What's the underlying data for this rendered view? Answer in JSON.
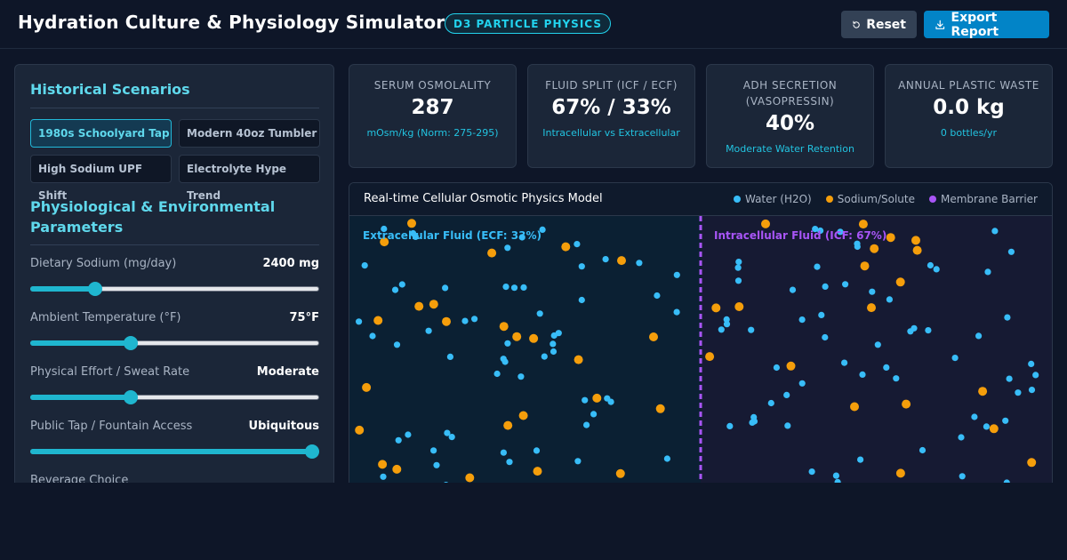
{
  "header": {
    "title": "Hydration Culture & Physiology Simulator",
    "badge": "D3 PARTICLE PHYSICS",
    "reset_label": "Reset",
    "export_label": "Export Report"
  },
  "sidebar": {
    "scenarios_title": "Historical Scenarios",
    "scenarios": [
      {
        "label": "1980s Schoolyard Tap",
        "active": true
      },
      {
        "label": "Modern 40oz Tumbler",
        "active": false
      },
      {
        "label": "High Sodium UPF Shift",
        "active": false
      },
      {
        "label": "Electrolyte Hype Trend",
        "active": false
      }
    ],
    "params_title": "Physiological & Environmental Parameters",
    "params": [
      {
        "label": "Dietary Sodium (mg/day)",
        "value": "2400 mg",
        "level": 0.21
      },
      {
        "label": "Ambient Temperature (°F)",
        "value": "75°F",
        "level": 0.34
      },
      {
        "label": "Physical Effort / Sweat Rate",
        "value": "Moderate",
        "level": 0.34
      },
      {
        "label": "Public Tap / Fountain Access",
        "value": "Ubiquitous",
        "level": 1.0
      }
    ],
    "next_label": "Beverage Choice"
  },
  "metrics": [
    {
      "title": "SERUM OSMOLALITY",
      "value": "287",
      "sub": "mOsm/kg (Norm: 275-295)"
    },
    {
      "title": "FLUID SPLIT (ICF / ECF)",
      "value": "67% / 33%",
      "sub": "Intracellular vs Extracellular"
    },
    {
      "title": "ADH SECRETION (VASOPRESSIN)",
      "value": "40%",
      "sub": "Moderate Water Retention"
    },
    {
      "title": "ANNUAL PLASTIC WASTE",
      "value": "0.0 kg",
      "sub": "0 bottles/yr"
    }
  ],
  "model": {
    "title": "Real-time Cellular Osmotic Physics Model",
    "legend": [
      {
        "label": "Water (H2O)",
        "color": "#38bdf8"
      },
      {
        "label": "Sodium/Solute",
        "color": "#f59e0b"
      },
      {
        "label": "Membrane Barrier",
        "color": "#a855f7"
      }
    ],
    "ecf_label": "Extracellular Fluid (ECF: 33%)",
    "icf_label": "Intracellular Fluid (ICF: 67%)",
    "colors": {
      "ecf_bg": "#0b2033",
      "icf_bg": "#161a33",
      "water": "#38bdf8",
      "solute": "#f59e0b",
      "membrane": "#a855f7"
    }
  }
}
